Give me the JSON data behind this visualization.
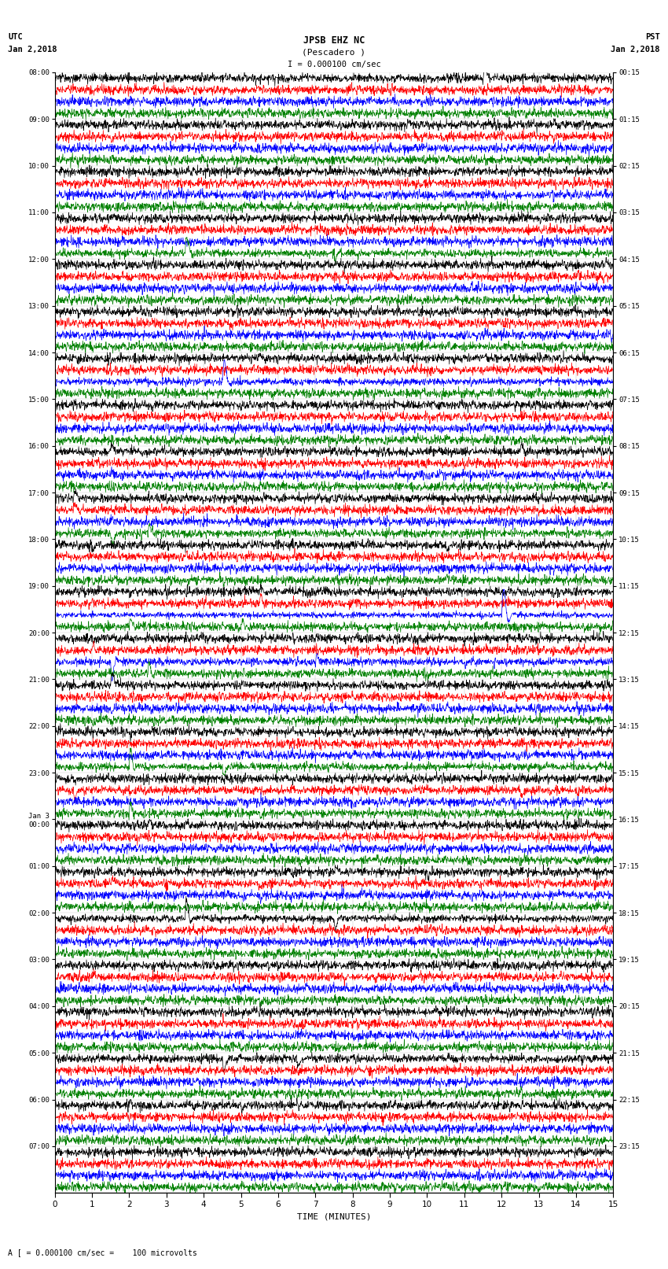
{
  "title_line1": "JPSB EHZ NC",
  "title_line2": "(Pescadero )",
  "scale_text": "I = 0.000100 cm/sec",
  "bottom_label": "TIME (MINUTES)",
  "bottom_note": "A [ = 0.000100 cm/sec =    100 microvolts",
  "utc_times": [
    "08:00",
    "09:00",
    "10:00",
    "11:00",
    "12:00",
    "13:00",
    "14:00",
    "15:00",
    "16:00",
    "17:00",
    "18:00",
    "19:00",
    "20:00",
    "21:00",
    "22:00",
    "23:00",
    "Jan 3\n00:00",
    "01:00",
    "02:00",
    "03:00",
    "04:00",
    "05:00",
    "06:00",
    "07:00"
  ],
  "pst_times": [
    "00:15",
    "01:15",
    "02:15",
    "03:15",
    "04:15",
    "05:15",
    "06:15",
    "07:15",
    "08:15",
    "09:15",
    "10:15",
    "11:15",
    "12:15",
    "13:15",
    "14:15",
    "15:15",
    "16:15",
    "17:15",
    "18:15",
    "19:15",
    "20:15",
    "21:15",
    "22:15",
    "23:15"
  ],
  "colors": [
    "black",
    "red",
    "blue",
    "green"
  ],
  "n_hours": 24,
  "traces_per_hour": 4,
  "x_min": 0,
  "x_max": 15,
  "x_ticks": [
    0,
    1,
    2,
    3,
    4,
    5,
    6,
    7,
    8,
    9,
    10,
    11,
    12,
    13,
    14,
    15
  ],
  "bg_color": "#ffffff",
  "seed": 12345
}
